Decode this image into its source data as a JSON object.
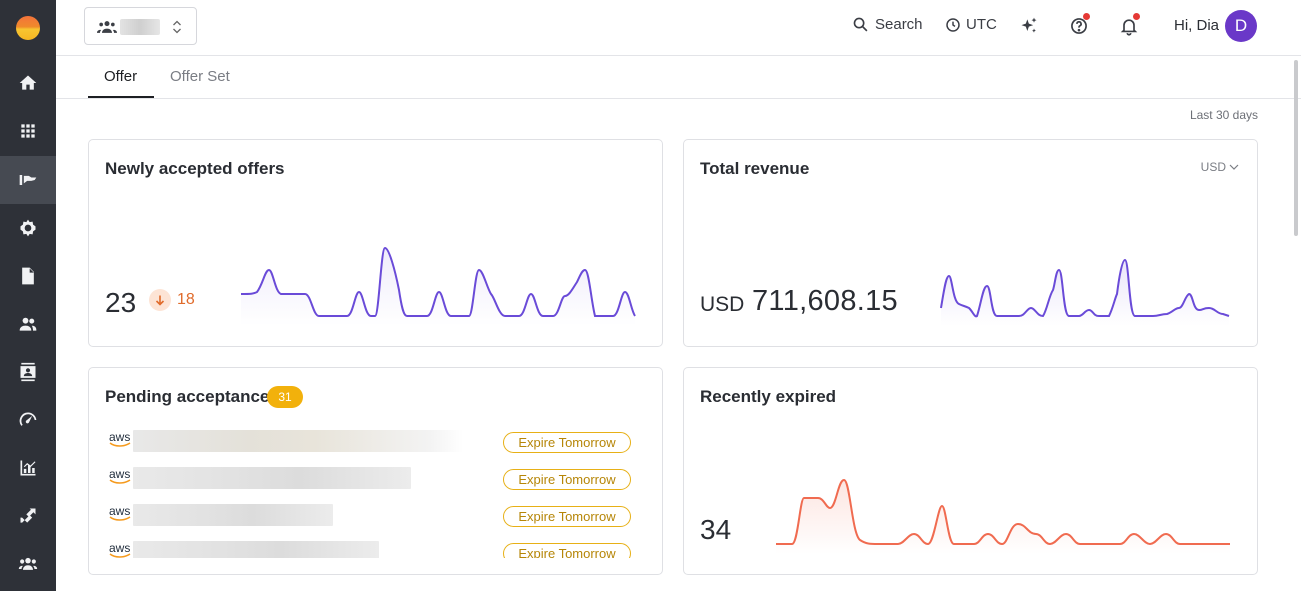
{
  "topbar": {
    "search_label": "Search",
    "timezone_label": "UTC",
    "greeting": "Hi, Dia",
    "avatar_initial": "D"
  },
  "sidebar": {
    "items": [
      {
        "icon": "home-icon"
      },
      {
        "icon": "apps-grid-icon"
      },
      {
        "icon": "offers-icon",
        "active": true
      },
      {
        "icon": "gear-icon"
      },
      {
        "icon": "document-icon"
      },
      {
        "icon": "people-icon"
      },
      {
        "icon": "contacts-icon"
      },
      {
        "icon": "gauge-icon"
      },
      {
        "icon": "analytics-icon"
      },
      {
        "icon": "integrations-icon"
      },
      {
        "icon": "team-icon"
      }
    ]
  },
  "tabs": [
    {
      "label": "Offer",
      "active": true
    },
    {
      "label": "Offer Set",
      "active": false
    }
  ],
  "date_range": "Last 30 days",
  "cards": {
    "newly_accepted": {
      "title": "Newly accepted offers",
      "value": "23",
      "delta": "18",
      "delta_direction": "down",
      "color": "#6a4bd8"
    },
    "total_revenue": {
      "title": "Total revenue",
      "currency_label": "USD",
      "value": "711,608.15",
      "currency_select": "USD",
      "color": "#6a4bd8"
    },
    "pending": {
      "title": "Pending acceptance",
      "count": "31",
      "rows": [
        {
          "logo": "aws",
          "status": "Expire Tomorrow"
        },
        {
          "logo": "aws",
          "status": "Expire Tomorrow"
        },
        {
          "logo": "aws",
          "status": "Expire Tomorrow"
        },
        {
          "logo": "aws",
          "status": "Expire Tomorrow"
        }
      ]
    },
    "recently_expired": {
      "title": "Recently expired",
      "value": "34",
      "color": "#f06b50"
    }
  },
  "colors": {
    "sidebar_bg": "#2e3138",
    "accent": "#6a38c8",
    "badge": "#f2b10c",
    "notify_dot": "#e53935"
  }
}
